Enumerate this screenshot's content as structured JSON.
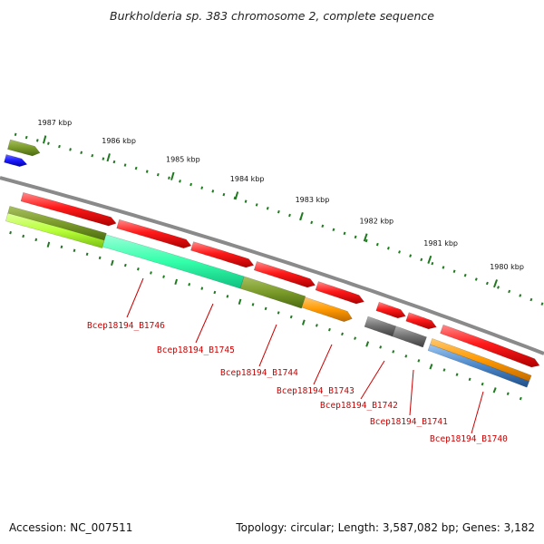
{
  "title": "Burkholderia sp. 383 chromosome 2, complete sequence",
  "kbp_labels": [
    "1987 kbp",
    "1986 kbp",
    "1985 kbp",
    "1984 kbp",
    "1983 kbp",
    "1982 kbp",
    "1981 kbp",
    "1980 kbp"
  ],
  "gene_labels": [
    "Bcep18194_B1746",
    "Bcep18194_B1745",
    "Bcep18194_B1744",
    "Bcep18194_B1743",
    "Bcep18194_B1742",
    "Bcep18194_B1741",
    "Bcep18194_B1740"
  ],
  "colors": {
    "forward_cds": "#ff1a1a",
    "backbone": "#8a8a8a",
    "tick": "#1f7a1f",
    "olive": "#7a9a2a",
    "blue": "#1a1aff",
    "lime": "#b8ff3a",
    "aqua": "#33ffaa",
    "orange": "#ff9900",
    "gray_cds": "#707070",
    "steel": "#4a86c8",
    "label": "#cc0000"
  },
  "footer": {
    "accession": "Accession: NC_007511",
    "summary": "Topology: circular; Length: 3,587,082 bp; Genes: 3,182"
  }
}
